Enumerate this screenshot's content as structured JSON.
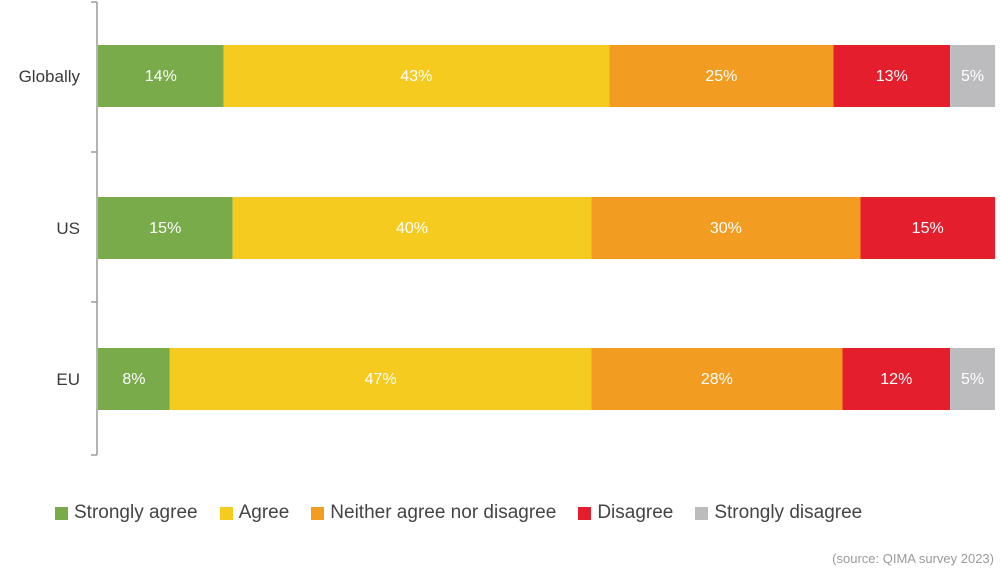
{
  "chart_data": {
    "type": "bar",
    "orientation": "horizontal",
    "stacked": true,
    "categories": [
      "Globally",
      "US",
      "EU"
    ],
    "series": [
      {
        "name": "Strongly agree",
        "color": "#7aab4b",
        "values": [
          14,
          15,
          8
        ]
      },
      {
        "name": "Agree",
        "color": "#f5cb1f",
        "values": [
          43,
          40,
          47
        ]
      },
      {
        "name": "Neither agree nor disagree",
        "color": "#f39c22",
        "values": [
          25,
          30,
          28
        ]
      },
      {
        "name": "Disagree",
        "color": "#e41e2d",
        "values": [
          13,
          15,
          12
        ]
      },
      {
        "name": "Strongly disagree",
        "color": "#bcbcbf",
        "values": [
          5,
          0,
          5
        ]
      }
    ],
    "xlim": [
      0,
      100
    ],
    "unit": "%",
    "grid": false,
    "legend_position": "bottom"
  },
  "source_note": "(source: QIMA survey 2023)"
}
